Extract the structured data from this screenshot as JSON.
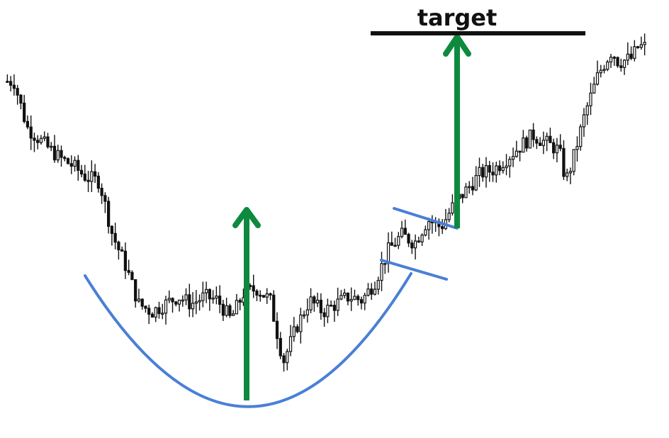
{
  "chart_data": {
    "type": "candlestick",
    "title": "",
    "xlabel": "",
    "ylabel": "",
    "axes_visible": false,
    "grid": false,
    "ylim": [
      0,
      100
    ],
    "price_path": [
      [
        1,
        84
      ],
      [
        3,
        72
      ],
      [
        6,
        67
      ],
      [
        8,
        64
      ],
      [
        10,
        62
      ],
      [
        12,
        59
      ],
      [
        14,
        58
      ],
      [
        16,
        44
      ],
      [
        18,
        36
      ],
      [
        20,
        26
      ],
      [
        22,
        24
      ],
      [
        24,
        26
      ],
      [
        26,
        28
      ],
      [
        28,
        26
      ],
      [
        30,
        28
      ],
      [
        32,
        27
      ],
      [
        34,
        22
      ],
      [
        36,
        29
      ],
      [
        38,
        30
      ],
      [
        40,
        27
      ],
      [
        42,
        11
      ],
      [
        44,
        20
      ],
      [
        46,
        27
      ],
      [
        48,
        24
      ],
      [
        50,
        26
      ],
      [
        52,
        28
      ],
      [
        54,
        27
      ],
      [
        56,
        32
      ],
      [
        58,
        40
      ],
      [
        60,
        44
      ],
      [
        62,
        42
      ],
      [
        64,
        48
      ],
      [
        66,
        46
      ],
      [
        68,
        52
      ],
      [
        70,
        56
      ],
      [
        72,
        60
      ],
      [
        74,
        61
      ],
      [
        76,
        64
      ],
      [
        78,
        67
      ],
      [
        80,
        70
      ],
      [
        82,
        68
      ],
      [
        84,
        66
      ],
      [
        85,
        58
      ],
      [
        86,
        63
      ],
      [
        88,
        76
      ],
      [
        90,
        86
      ],
      [
        92,
        92
      ],
      [
        93,
        89
      ],
      [
        95,
        90
      ],
      [
        96,
        93
      ]
    ],
    "annotations": {
      "target_label": "target",
      "target_level": 93
    },
    "colors": {
      "candle": "#111111",
      "bullish_fill": "#ffffff",
      "bearish_fill": "#111111",
      "arc": "#4a7fd6",
      "arrow": "#0d8a3d",
      "target_line": "#111111"
    }
  }
}
